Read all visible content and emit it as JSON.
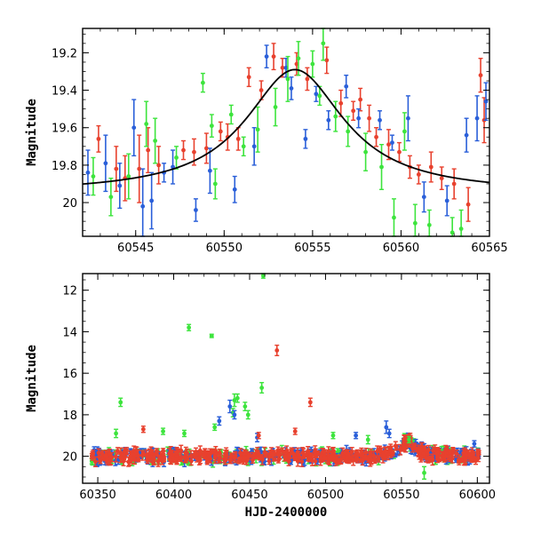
{
  "chart_data": [
    {
      "type": "scatter",
      "panel": "top",
      "title": "",
      "xlabel": "",
      "ylabel": "Magnitude",
      "xlim": [
        60542,
        60565
      ],
      "ylim": [
        20.18,
        19.07
      ],
      "y_inverted": true,
      "xticks": [
        60545,
        60550,
        60555,
        60560,
        60565
      ],
      "yticks": [
        19.2,
        19.4,
        19.6,
        19.8,
        20
      ],
      "ytick_labels": [
        "19.2",
        "19.4",
        "19.6",
        "19.8",
        "20"
      ],
      "grid": false,
      "legend": "none",
      "model_curve": {
        "type": "line",
        "peak_x": 60554.0,
        "peak_mag": 19.29,
        "baseline_mag": 19.95,
        "width": 3.4,
        "color": "#000000"
      },
      "series": [
        {
          "color": "#e8412e",
          "points": [
            [
              60542.9,
              19.66,
              0.07
            ],
            [
              60543.9,
              19.82,
              0.12
            ],
            [
              60544.4,
              19.87,
              0.12
            ],
            [
              60545.2,
              19.82,
              0.18
            ],
            [
              60545.7,
              19.72,
              0.12
            ],
            [
              60546.3,
              19.8,
              0.1
            ],
            [
              60547.7,
              19.72,
              0.05
            ],
            [
              60548.3,
              19.73,
              0.07
            ],
            [
              60549.0,
              19.71,
              0.08
            ],
            [
              60549.8,
              19.62,
              0.05
            ],
            [
              60550.2,
              19.65,
              0.07
            ],
            [
              60550.8,
              19.66,
              0.06
            ],
            [
              60551.4,
              19.33,
              0.05
            ],
            [
              60552.1,
              19.4,
              0.05
            ],
            [
              60552.8,
              19.22,
              0.07
            ],
            [
              60553.3,
              19.28,
              0.05
            ],
            [
              60554.1,
              19.26,
              0.06
            ],
            [
              60554.7,
              19.34,
              0.06
            ],
            [
              60555.8,
              19.24,
              0.07
            ],
            [
              60556.6,
              19.47,
              0.07
            ],
            [
              60557.3,
              19.51,
              0.05
            ],
            [
              60557.7,
              19.45,
              0.06
            ],
            [
              60558.2,
              19.55,
              0.07
            ],
            [
              60558.6,
              19.65,
              0.05
            ],
            [
              60559.3,
              19.69,
              0.08
            ],
            [
              60559.9,
              19.73,
              0.05
            ],
            [
              60560.5,
              19.81,
              0.06
            ],
            [
              60561.0,
              19.85,
              0.05
            ],
            [
              60561.7,
              19.81,
              0.08
            ],
            [
              60562.3,
              19.87,
              0.06
            ],
            [
              60563.0,
              19.9,
              0.08
            ],
            [
              60563.8,
              20.01,
              0.09
            ],
            [
              60564.5,
              19.32,
              0.09
            ],
            [
              60564.7,
              19.56,
              0.12
            ]
          ]
        },
        {
          "color": "#2a5fd9",
          "points": [
            [
              60542.3,
              19.84,
              0.12
            ],
            [
              60543.3,
              19.79,
              0.15
            ],
            [
              60544.1,
              19.91,
              0.12
            ],
            [
              60544.9,
              19.6,
              0.15
            ],
            [
              60545.4,
              20.02,
              0.2
            ],
            [
              60545.9,
              19.99,
              0.15
            ],
            [
              60546.6,
              19.84,
              0.05
            ],
            [
              60547.1,
              19.81,
              0.09
            ],
            [
              60548.4,
              20.04,
              0.06
            ],
            [
              60549.2,
              19.83,
              0.12
            ],
            [
              60550.6,
              19.93,
              0.07
            ],
            [
              60551.7,
              19.7,
              0.1
            ],
            [
              60552.4,
              19.22,
              0.06
            ],
            [
              60553.5,
              19.28,
              0.05
            ],
            [
              60553.8,
              19.39,
              0.06
            ],
            [
              60554.6,
              19.66,
              0.05
            ],
            [
              60555.2,
              19.42,
              0.04
            ],
            [
              60555.9,
              19.56,
              0.05
            ],
            [
              60556.9,
              19.38,
              0.06
            ],
            [
              60557.6,
              19.55,
              0.05
            ],
            [
              60558.8,
              19.56,
              0.05
            ],
            [
              60559.5,
              19.68,
              0.04
            ],
            [
              60560.4,
              19.55,
              0.12
            ],
            [
              60561.3,
              19.97,
              0.08
            ],
            [
              60562.6,
              19.99,
              0.08
            ],
            [
              60563.7,
              19.64,
              0.09
            ],
            [
              60564.3,
              19.55,
              0.12
            ],
            [
              60564.8,
              19.46,
              0.1
            ]
          ]
        },
        {
          "color": "#3de43d",
          "points": [
            [
              60542.6,
              19.86,
              0.1
            ],
            [
              60543.6,
              19.97,
              0.1
            ],
            [
              60544.6,
              19.86,
              0.12
            ],
            [
              60545.6,
              19.58,
              0.12
            ],
            [
              60546.1,
              19.67,
              0.12
            ],
            [
              60547.3,
              19.76,
              0.06
            ],
            [
              60548.8,
              19.36,
              0.05
            ],
            [
              60549.3,
              19.59,
              0.06
            ],
            [
              60549.5,
              19.9,
              0.08
            ],
            [
              60550.4,
              19.53,
              0.05
            ],
            [
              60551.1,
              19.7,
              0.05
            ],
            [
              60551.9,
              19.61,
              0.12
            ],
            [
              60552.9,
              19.49,
              0.1
            ],
            [
              60553.6,
              19.34,
              0.12
            ],
            [
              60554.2,
              19.23,
              0.09
            ],
            [
              60555.0,
              19.26,
              0.07
            ],
            [
              60555.4,
              19.43,
              0.05
            ],
            [
              60555.6,
              19.15,
              0.09
            ],
            [
              60556.3,
              19.54,
              0.08
            ],
            [
              60557.0,
              19.62,
              0.08
            ],
            [
              60558.0,
              19.73,
              0.1
            ],
            [
              60558.9,
              19.81,
              0.12
            ],
            [
              60559.6,
              20.08,
              0.1
            ],
            [
              60560.2,
              19.62,
              0.1
            ],
            [
              60560.8,
              20.11,
              0.1
            ],
            [
              60561.6,
              20.12,
              0.08
            ],
            [
              60562.9,
              20.16,
              0.08
            ],
            [
              60563.4,
              20.14,
              0.1
            ]
          ]
        }
      ]
    },
    {
      "type": "scatter",
      "panel": "bottom",
      "title": "",
      "xlabel": "HJD-2400000",
      "ylabel": "Magnitude",
      "xlim": [
        60340,
        60608
      ],
      "ylim": [
        21.3,
        11.2
      ],
      "y_inverted": true,
      "xticks": [
        60350,
        60400,
        60450,
        60500,
        60550,
        60600
      ],
      "yticks": [
        12,
        14,
        16,
        18,
        20
      ],
      "grid": false,
      "legend": "none",
      "baseline_mag": 20.0,
      "bump": {
        "peak_x": 60554.0,
        "peak_mag": 19.3
      },
      "series": [
        {
          "color": "#e8412e",
          "outliers": [
            [
              60468,
              14.9,
              0.25
            ],
            [
              60490,
              17.4,
              0.2
            ],
            [
              60480,
              18.8,
              0.15
            ],
            [
              60380,
              18.7,
              0.15
            ],
            [
              60456,
              19.0,
              0.15
            ]
          ]
        },
        {
          "color": "#2a5fd9",
          "outliers": [
            [
              60440,
              18.0,
              0.2
            ],
            [
              60437,
              17.6,
              0.3
            ],
            [
              60430,
              18.3,
              0.2
            ],
            [
              60455,
              19.1,
              0.2
            ],
            [
              60520,
              19.0,
              0.15
            ],
            [
              60540,
              18.6,
              0.3
            ],
            [
              60542,
              18.9,
              0.2
            ],
            [
              60598,
              19.4,
              0.15
            ]
          ]
        },
        {
          "color": "#3de43d",
          "outliers": [
            [
              60459,
              11.3,
              0.12
            ],
            [
              60410,
              13.8,
              0.15
            ],
            [
              60425,
              14.2,
              0.08
            ],
            [
              60458,
              16.7,
              0.25
            ],
            [
              60365,
              17.4,
              0.2
            ],
            [
              60440,
              17.3,
              0.3
            ],
            [
              60442,
              17.2,
              0.2
            ],
            [
              60447,
              17.6,
              0.2
            ],
            [
              60449,
              18.0,
              0.2
            ],
            [
              60439,
              17.9,
              0.2
            ],
            [
              60427,
              18.6,
              0.15
            ],
            [
              60362,
              18.9,
              0.2
            ],
            [
              60393,
              18.8,
              0.15
            ],
            [
              60407,
              18.9,
              0.15
            ],
            [
              60505,
              19.0,
              0.15
            ],
            [
              60528,
              19.2,
              0.2
            ],
            [
              60565,
              20.8,
              0.3
            ],
            [
              60555,
              19.2,
              0.15
            ]
          ]
        }
      ]
    }
  ]
}
